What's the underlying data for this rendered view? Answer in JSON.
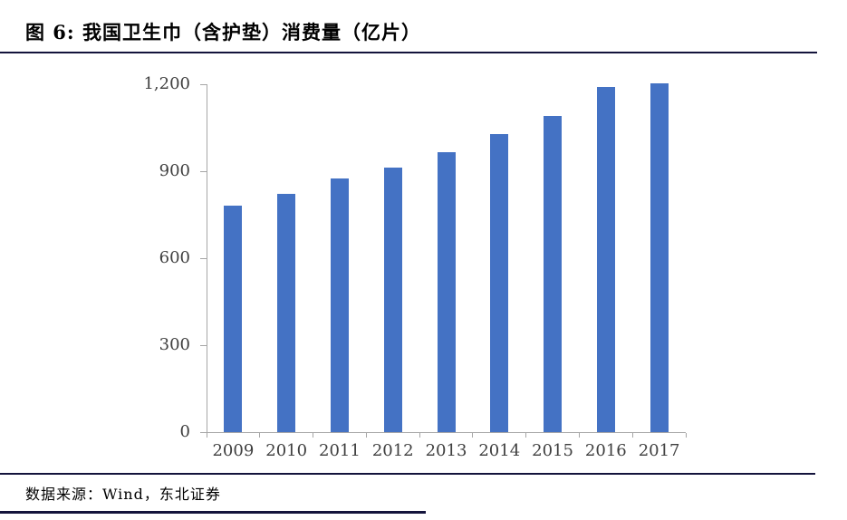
{
  "figure": {
    "title": "图 6: 我国卫生巾（含护垫）消费量（亿片）",
    "source": "数据来源：Wind，东北证券"
  },
  "chart_data": {
    "type": "bar",
    "title": "我国卫生巾（含护垫）消费量（亿片）",
    "categories": [
      "2009",
      "2010",
      "2011",
      "2012",
      "2013",
      "2014",
      "2015",
      "2016",
      "2017"
    ],
    "values": [
      780,
      823,
      875,
      912,
      967,
      1028,
      1090,
      1190,
      1202
    ],
    "xlabel": "",
    "ylabel": "",
    "ylim": [
      0,
      1200
    ],
    "yticks": [
      0,
      300,
      600,
      900,
      1200
    ],
    "ytick_labels": [
      "0",
      "300",
      "600",
      "900",
      "1,200"
    ],
    "grid": false,
    "legend": "none",
    "bar_color": "#4472C4",
    "axis_color": "#A6A6A6"
  }
}
